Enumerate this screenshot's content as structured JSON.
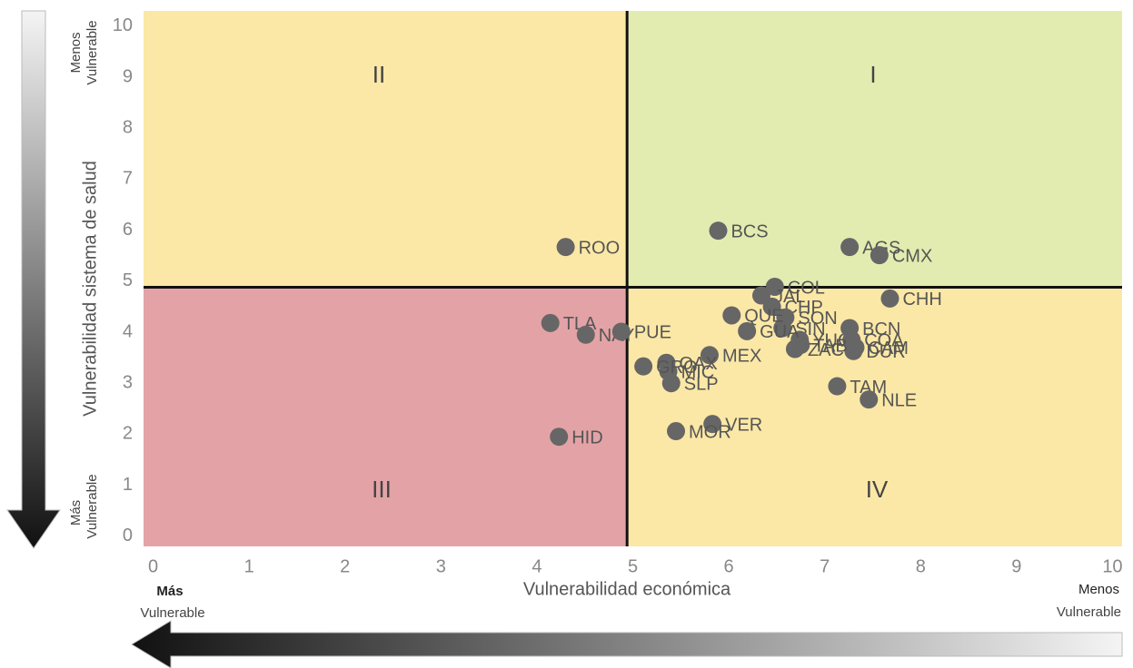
{
  "chart_data": {
    "type": "scatter",
    "xlabel": "Vulnerabilidad económica",
    "ylabel": "Vulnerabilidad sistema de salud",
    "xlim": [
      -0.1,
      10.1
    ],
    "ylim": [
      -0.2,
      10.3
    ],
    "xticks": [
      0,
      1,
      2,
      3,
      4,
      5,
      6,
      7,
      8,
      9,
      10
    ],
    "yticks": [
      0,
      1,
      2,
      3,
      4,
      5,
      6,
      7,
      8,
      9,
      10
    ],
    "x_divider": 4.94,
    "y_divider": 4.88,
    "quadrant_colors": {
      "I": "#e3ecb0",
      "II": "#fbe8a6",
      "III": "#e3a3a6",
      "IV": "#fbe8a6"
    },
    "quadrant_labels": [
      "I",
      "II",
      "III",
      "IV"
    ],
    "color": "#666666",
    "point_labels": [
      "ROO",
      "BCS",
      "AGS",
      "CMX",
      "COL",
      "CHH",
      "JAL",
      "CHP",
      "SON",
      "SIN",
      "YUC",
      "ZAC",
      "BCN",
      "COA",
      "DUR",
      "CAM",
      "TAB",
      "TAM",
      "NLE",
      "TLA",
      "NAY",
      "PUE",
      "QUE",
      "GUA",
      "MEX",
      "OAX",
      "MIC",
      "SLP",
      "GRO",
      "VER",
      "MOR",
      "HID"
    ],
    "x": [
      4.3,
      5.89,
      7.26,
      7.57,
      6.48,
      7.68,
      6.34,
      6.45,
      6.59,
      6.56,
      6.74,
      6.69,
      7.26,
      7.28,
      7.3,
      7.32,
      6.75,
      7.13,
      7.46,
      4.14,
      4.51,
      4.88,
      6.03,
      6.19,
      5.8,
      5.35,
      5.37,
      5.4,
      5.11,
      5.83,
      5.45,
      4.23
    ],
    "values": [
      5.67,
      5.99,
      5.67,
      5.51,
      4.89,
      4.66,
      4.72,
      4.5,
      4.29,
      4.08,
      3.85,
      3.67,
      4.08,
      3.85,
      3.63,
      3.7,
      3.75,
      2.94,
      2.68,
      4.18,
      3.95,
      4.01,
      4.33,
      4.02,
      3.55,
      3.4,
      3.23,
      3.0,
      3.33,
      2.2,
      2.06,
      1.95
    ],
    "annotations": {
      "y_top": [
        "Menos",
        "Vulnerable"
      ],
      "y_bottom": [
        "Más",
        "Vulnerable"
      ],
      "x_left": [
        "Más",
        "Vulnerable"
      ],
      "x_right": [
        "Menos",
        "Vulnerable"
      ]
    }
  }
}
